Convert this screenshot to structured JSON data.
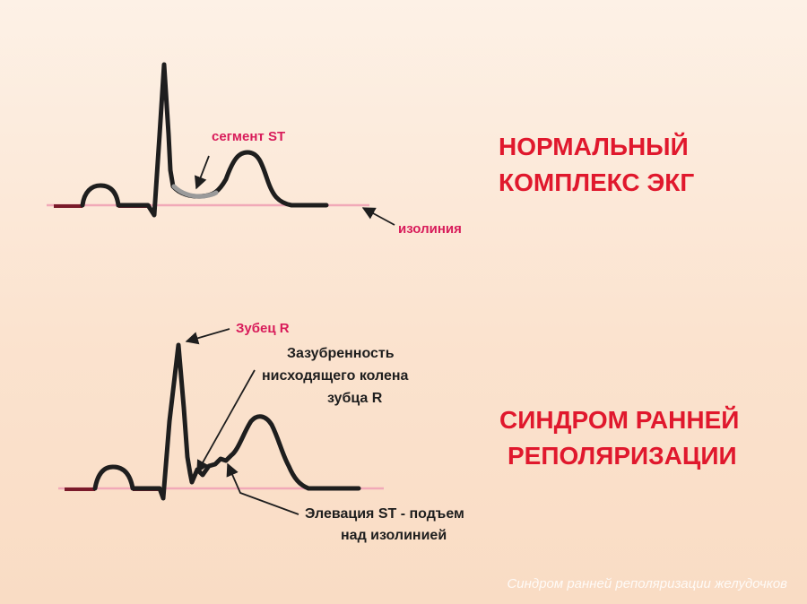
{
  "top": {
    "heading_line1": "НОРМАЛЬНЫЙ",
    "heading_line2": "КОМПЛЕКС ЭКГ",
    "label_st_segment": "сегмент ST",
    "label_isoline": "изолиния"
  },
  "bottom": {
    "heading_line1": "СИНДРОМ РАННЕЙ",
    "heading_line2": "РЕПОЛЯРИЗАЦИИ",
    "label_r_wave": "Зубец R",
    "label_notch_line1": "Зазубренность",
    "label_notch_line2": "нисходящего колена",
    "label_notch_line3": "зубца R",
    "label_elevation_line1": "Элевация ST - подъем",
    "label_elevation_line2": "над изолинией"
  },
  "watermark": "Синдром ранней реполяризации желудочков",
  "colors": {
    "heading": "#e0182d",
    "label_pink": "#d81b5a",
    "isoline": "#f1a9b8",
    "trace": "#1e1e1e",
    "st_segment": "#9a9a9a"
  }
}
